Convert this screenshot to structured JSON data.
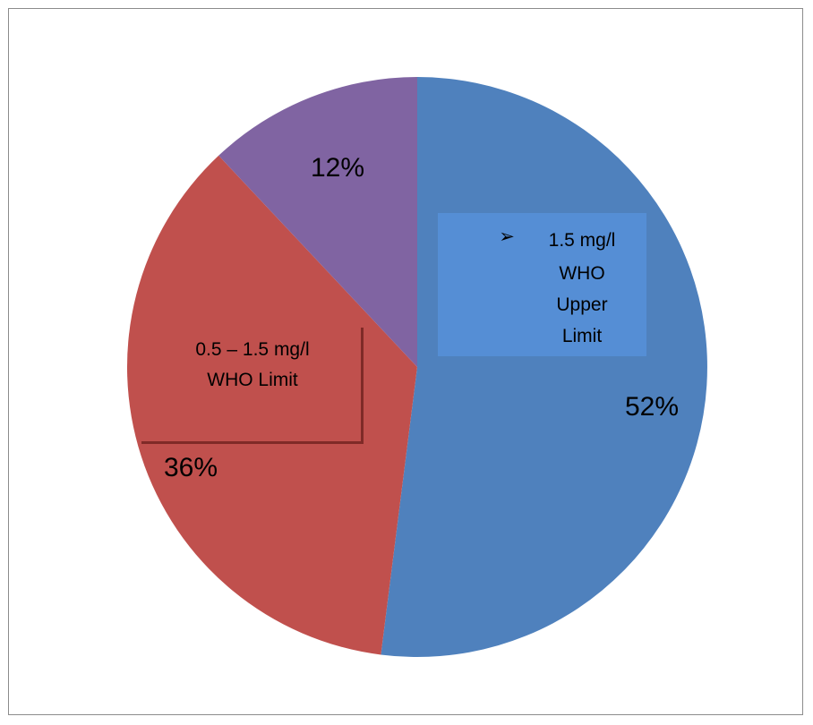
{
  "chart_data": {
    "type": "pie",
    "slices": [
      {
        "value": 52,
        "label": "52%",
        "color": "#4F81BD"
      },
      {
        "value": 36,
        "label": "36%",
        "color": "#C0504D"
      },
      {
        "value": 12,
        "label": "12%",
        "color": "#8064A2"
      }
    ],
    "annotations": {
      "upper": {
        "lines": [
          "1.5 mg/l",
          "WHO",
          "Upper",
          "Limit"
        ],
        "bullet": "➢",
        "fill": "#558ED5"
      },
      "range": {
        "lines": [
          "0.5 – 1.5 mg/l",
          "WHO Limit"
        ],
        "border": "#7F2A27"
      }
    },
    "start_angle_deg": 0,
    "direction": "clockwise",
    "legend": "none"
  }
}
